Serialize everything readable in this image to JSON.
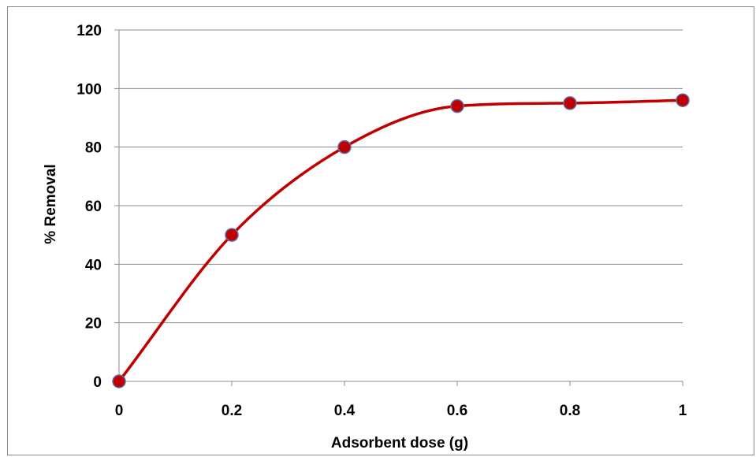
{
  "chart_data": {
    "type": "line",
    "title": "",
    "xlabel": "Adsorbent dose (g)",
    "ylabel": "%  Removal",
    "x": [
      0,
      0.2,
      0.4,
      0.6,
      0.8,
      1
    ],
    "series": [
      {
        "values": [
          0,
          50,
          80,
          94,
          95,
          96
        ]
      }
    ],
    "x_ticks": [
      "0",
      "0.2",
      "0.4",
      "0.6",
      "0.8",
      "1"
    ],
    "y_ticks": [
      "0",
      "20",
      "40",
      "60",
      "80",
      "100",
      "120"
    ],
    "xlim": [
      0,
      1
    ],
    "ylim": [
      0,
      120
    ],
    "grid": "horizontal",
    "smooth": true,
    "line_color": "#c00000",
    "marker_fill": "#c00000",
    "marker_stroke": "#5a6fa8",
    "grid_color": "#8c8c8c"
  }
}
